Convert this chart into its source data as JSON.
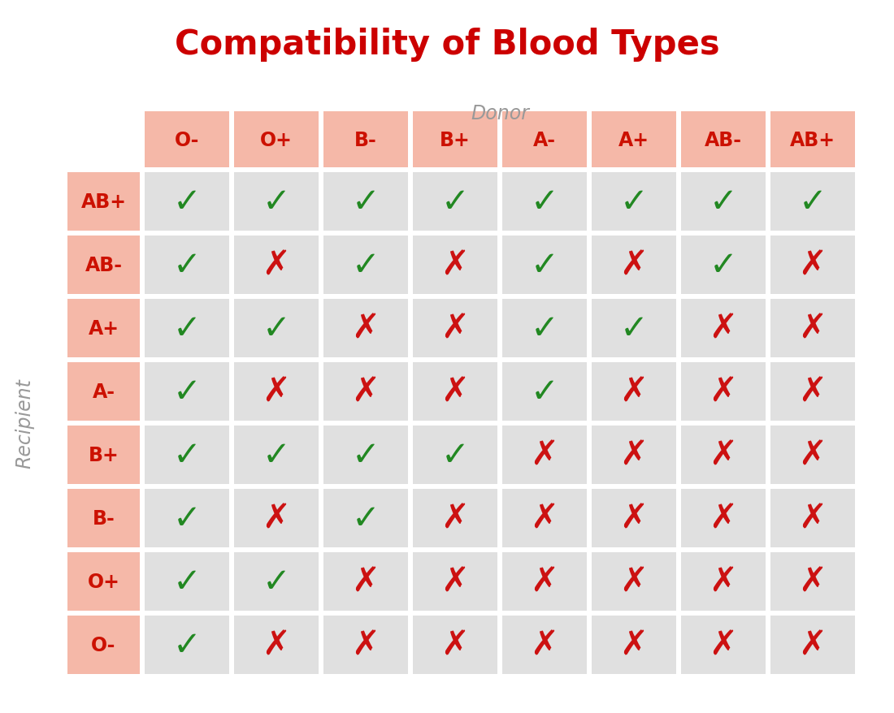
{
  "title": "Compatibility of Blood Types",
  "title_color": "#cc0000",
  "title_fontsize": 30,
  "donor_label": "Donor",
  "donor_label_color": "#999999",
  "recipient_label": "Recipient",
  "recipient_label_color": "#999999",
  "donor_types": [
    "O-",
    "O+",
    "B-",
    "B+",
    "A-",
    "A+",
    "AB-",
    "AB+"
  ],
  "recipient_types": [
    "AB+",
    "AB-",
    "A+",
    "A-",
    "B+",
    "B-",
    "O+",
    "O-"
  ],
  "header_bg": "#f5b8a8",
  "header_text_color": "#cc1100",
  "row_label_bg": "#f5b8a8",
  "cell_bg": "#e0e0e0",
  "check_color": "#228822",
  "cross_color": "#cc1111",
  "background_color": "#ffffff",
  "compatibility": [
    [
      1,
      1,
      1,
      1,
      1,
      1,
      1,
      1
    ],
    [
      1,
      0,
      1,
      0,
      1,
      0,
      1,
      0
    ],
    [
      1,
      1,
      0,
      0,
      1,
      1,
      0,
      0
    ],
    [
      1,
      0,
      0,
      0,
      1,
      0,
      0,
      0
    ],
    [
      1,
      1,
      1,
      1,
      0,
      0,
      0,
      0
    ],
    [
      1,
      0,
      1,
      0,
      0,
      0,
      0,
      0
    ],
    [
      1,
      1,
      0,
      0,
      0,
      0,
      0,
      0
    ],
    [
      1,
      0,
      0,
      0,
      0,
      0,
      0,
      0
    ]
  ],
  "check_symbol": "✓",
  "cross_symbol": "✗",
  "donor_label_fontsize": 17,
  "recipient_label_fontsize": 17,
  "header_fontsize": 17,
  "symbol_fontsize": 30
}
